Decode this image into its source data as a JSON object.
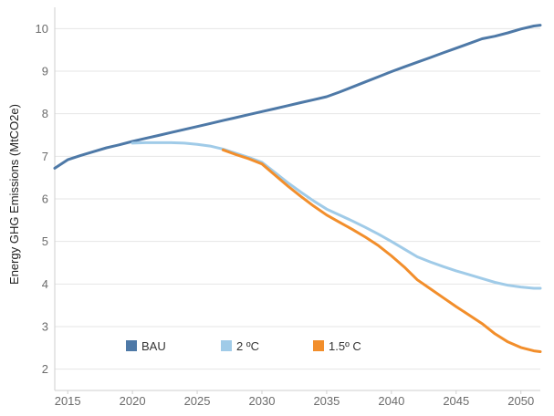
{
  "chart_data": {
    "type": "line",
    "ylabel": "Energy GHG Emissions (MtCO2e)",
    "xlabel": "",
    "xlim": [
      2014,
      2051.5
    ],
    "ylim": [
      1.5,
      10.5
    ],
    "x_ticks": [
      2015,
      2020,
      2025,
      2030,
      2035,
      2040,
      2045,
      2050
    ],
    "y_ticks": [
      2,
      3,
      4,
      5,
      6,
      7,
      8,
      9,
      10
    ],
    "grid": "horizontal",
    "legend_position": "bottom-left",
    "series": [
      {
        "name": "BAU",
        "color": "#4e79a7",
        "points": [
          [
            2014,
            6.72
          ],
          [
            2015,
            6.92
          ],
          [
            2016,
            7.02
          ],
          [
            2017,
            7.11
          ],
          [
            2018,
            7.2
          ],
          [
            2019,
            7.27
          ],
          [
            2020,
            7.35
          ],
          [
            2021,
            7.42
          ],
          [
            2022,
            7.49
          ],
          [
            2023,
            7.56
          ],
          [
            2024,
            7.63
          ],
          [
            2025,
            7.7
          ],
          [
            2026,
            7.77
          ],
          [
            2027,
            7.84
          ],
          [
            2028,
            7.91
          ],
          [
            2029,
            7.98
          ],
          [
            2030,
            8.05
          ],
          [
            2031,
            8.12
          ],
          [
            2032,
            8.19
          ],
          [
            2033,
            8.26
          ],
          [
            2034,
            8.33
          ],
          [
            2035,
            8.4
          ],
          [
            2036,
            8.51
          ],
          [
            2037,
            8.63
          ],
          [
            2038,
            8.75
          ],
          [
            2039,
            8.87
          ],
          [
            2040,
            8.99
          ],
          [
            2041,
            9.1
          ],
          [
            2042,
            9.21
          ],
          [
            2043,
            9.32
          ],
          [
            2044,
            9.43
          ],
          [
            2045,
            9.54
          ],
          [
            2046,
            9.65
          ],
          [
            2047,
            9.76
          ],
          [
            2048,
            9.82
          ],
          [
            2049,
            9.9
          ],
          [
            2050,
            9.99
          ],
          [
            2051,
            10.06
          ],
          [
            2051.5,
            10.08
          ]
        ]
      },
      {
        "name": "2 ºC",
        "color": "#a0cbe8",
        "points": [
          [
            2020,
            7.31
          ],
          [
            2021,
            7.32
          ],
          [
            2022,
            7.32
          ],
          [
            2023,
            7.32
          ],
          [
            2024,
            7.31
          ],
          [
            2025,
            7.28
          ],
          [
            2026,
            7.24
          ],
          [
            2027,
            7.17
          ],
          [
            2028,
            7.07
          ],
          [
            2029,
            6.97
          ],
          [
            2030,
            6.86
          ],
          [
            2031,
            6.62
          ],
          [
            2032,
            6.38
          ],
          [
            2033,
            6.16
          ],
          [
            2034,
            5.95
          ],
          [
            2035,
            5.76
          ],
          [
            2036,
            5.62
          ],
          [
            2037,
            5.48
          ],
          [
            2038,
            5.33
          ],
          [
            2039,
            5.17
          ],
          [
            2040,
            5.0
          ],
          [
            2041,
            4.82
          ],
          [
            2042,
            4.64
          ],
          [
            2043,
            4.52
          ],
          [
            2044,
            4.41
          ],
          [
            2045,
            4.31
          ],
          [
            2046,
            4.22
          ],
          [
            2047,
            4.13
          ],
          [
            2048,
            4.04
          ],
          [
            2049,
            3.97
          ],
          [
            2050,
            3.93
          ],
          [
            2051,
            3.9
          ],
          [
            2051.5,
            3.9
          ]
        ]
      },
      {
        "name": "1.5º C",
        "color": "#f28e2b",
        "points": [
          [
            2027,
            7.15
          ],
          [
            2028,
            7.04
          ],
          [
            2029,
            6.94
          ],
          [
            2030,
            6.82
          ],
          [
            2031,
            6.56
          ],
          [
            2032,
            6.3
          ],
          [
            2033,
            6.06
          ],
          [
            2034,
            5.83
          ],
          [
            2035,
            5.62
          ],
          [
            2036,
            5.45
          ],
          [
            2037,
            5.28
          ],
          [
            2038,
            5.1
          ],
          [
            2039,
            4.9
          ],
          [
            2040,
            4.66
          ],
          [
            2041,
            4.4
          ],
          [
            2042,
            4.1
          ],
          [
            2043,
            3.89
          ],
          [
            2044,
            3.68
          ],
          [
            2045,
            3.47
          ],
          [
            2046,
            3.27
          ],
          [
            2047,
            3.07
          ],
          [
            2048,
            2.83
          ],
          [
            2049,
            2.64
          ],
          [
            2050,
            2.51
          ],
          [
            2051,
            2.43
          ],
          [
            2051.5,
            2.41
          ]
        ]
      }
    ]
  }
}
